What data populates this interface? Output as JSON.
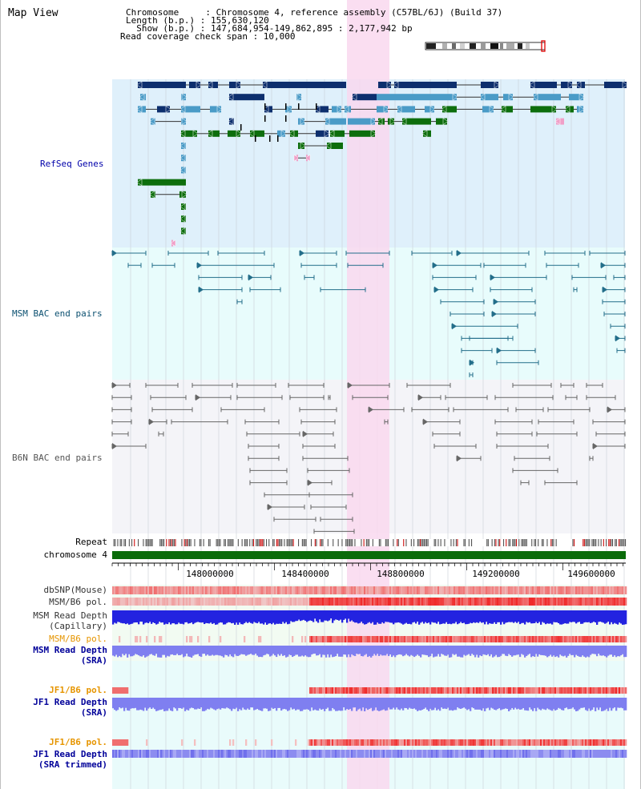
{
  "view_title": "Map View",
  "header": {
    "chromosome": "Chromosome     : Chromosome 4, reference assembly (C57BL/6J) (Build 37)",
    "length": "Length (b.p.) : 155,630,120",
    "show": "  Show (b.p.) : 147,684,954-149,862,895 : 2,177,942 bp",
    "coverage": "Read coverage check span : 10,000"
  },
  "tracks": {
    "refseq": "RefSeq Genes",
    "msm_bac": "MSM BAC end pairs",
    "b6n_bac": "B6N BAC end pairs",
    "repeat": "Repeat",
    "chromosome": "chromosome 4",
    "dbsnp": "dbSNP(Mouse)",
    "msm_b6_pol_1": "MSM/B6 pol.",
    "msm_read_depth_cap_1": "MSM Read Depth",
    "msm_read_depth_cap_2": "(Capillary)",
    "msm_b6_pol_2": "MSM/B6 pol.",
    "msm_read_depth_sra_1": "MSM Read Depth",
    "msm_read_depth_sra_2": "(SRA)",
    "jf1_b6_pol_1": "JF1/B6 pol.",
    "jf1_read_depth_sra_1": "JF1 Read Depth",
    "jf1_read_depth_sra_2": "(SRA)",
    "jf1_b6_pol_2": "JF1/B6 pol.",
    "jf1_read_depth_trim_1": "JF1 Read Depth",
    "jf1_read_depth_trim_2": "(SRA trimmed)"
  },
  "axis": {
    "ticks": [
      "148000000",
      "148400000",
      "148800000",
      "149200000",
      "149600000"
    ]
  },
  "colors": {
    "refseq_bg": "#dff0fb",
    "msm_bac_bg": "#e8fcfc",
    "b6n_bac_bg": "#f4f4f8",
    "highlight": "#f9d8ef",
    "gene_dark": "#0d2f6e",
    "gene_mid": "#4a9bc7",
    "gene_green": "#0d6e0d",
    "bac_msm": "#236e8a",
    "bac_b6n": "#666666",
    "chromosome_bar": "#0a6b0a",
    "pol_red": "#e02020",
    "depth_blue": "#2323e0",
    "depth_light": "#7f7ff0",
    "msm_label": "#000099",
    "jf1_label_orange": "#e69500"
  }
}
